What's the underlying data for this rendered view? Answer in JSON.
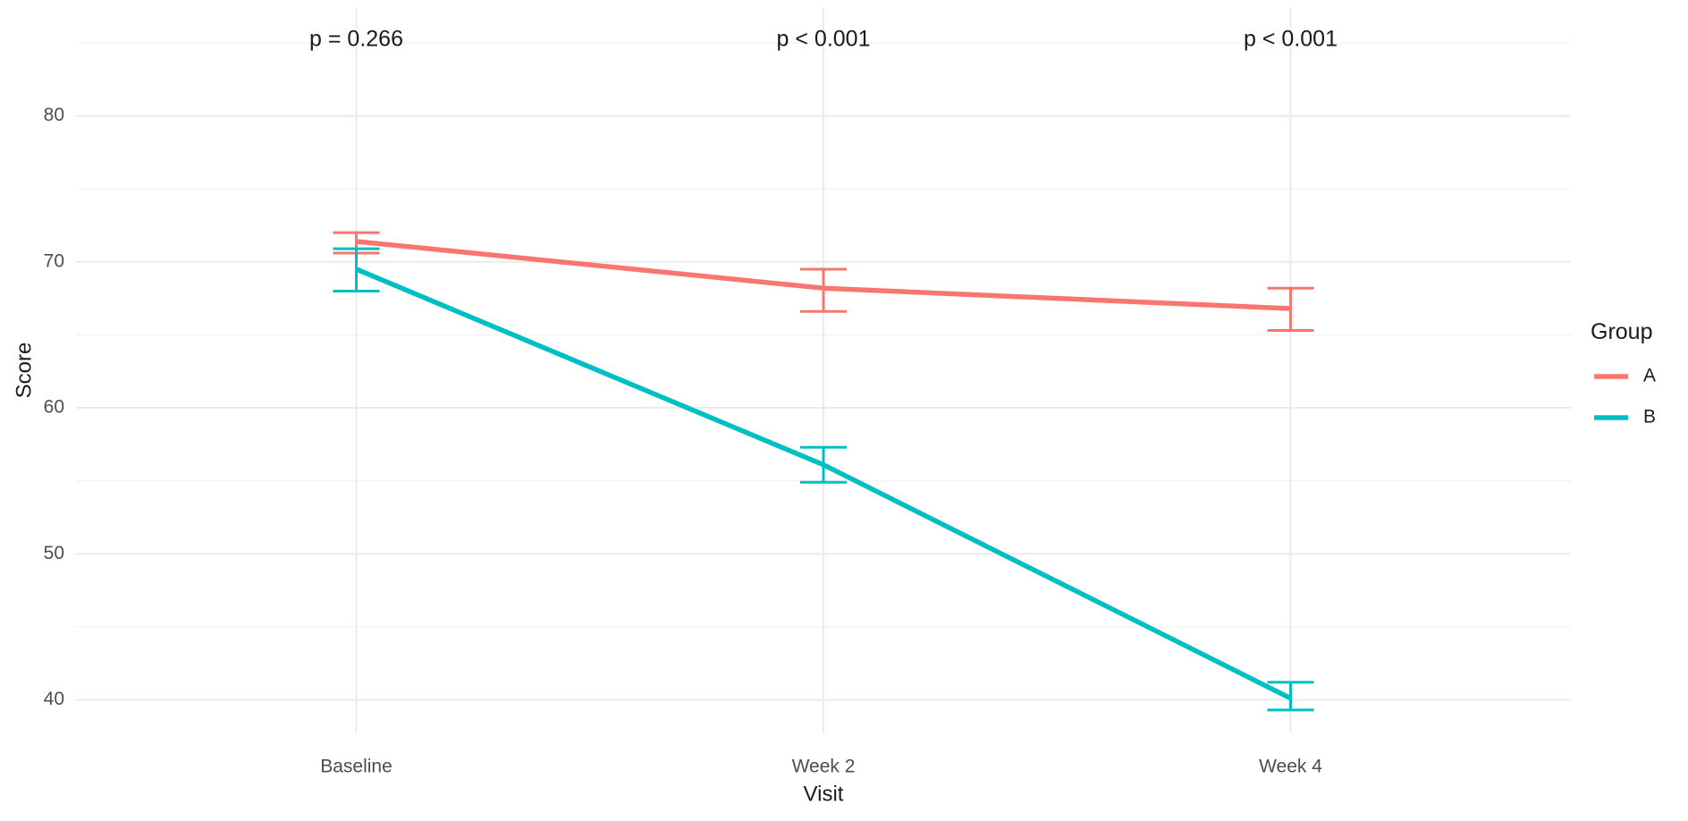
{
  "chart_data": {
    "type": "line",
    "title": "",
    "xlabel": "Visit",
    "ylabel": "Score",
    "categories": [
      "Baseline",
      "Week 2",
      "Week 4"
    ],
    "series": [
      {
        "name": "A",
        "color": "#F8766D",
        "values": [
          71.4,
          68.2,
          66.8
        ],
        "ci_low": [
          70.6,
          66.6,
          65.3
        ],
        "ci_high": [
          72.0,
          69.5,
          68.2
        ]
      },
      {
        "name": "B",
        "color": "#00BFC4",
        "values": [
          69.5,
          56.1,
          40.1
        ],
        "ci_low": [
          68.0,
          54.9,
          39.3
        ],
        "ci_high": [
          70.9,
          57.3,
          41.2
        ]
      }
    ],
    "annotations": [
      {
        "category": "Baseline",
        "label": "p = 0.266",
        "y": 85.2
      },
      {
        "category": "Week 2",
        "label": "p < 0.001",
        "y": 85.2
      },
      {
        "category": "Week 4",
        "label": "p < 0.001",
        "y": 85.2
      }
    ],
    "y_major_ticks": [
      40,
      50,
      60,
      70,
      80
    ],
    "y_minor_ticks": [
      45,
      55,
      65,
      75,
      85
    ],
    "ylim": [
      37.7,
      87.45
    ],
    "grid": true,
    "legend_title": "Group",
    "legend_position": "right"
  },
  "styles": {
    "background": "#ffffff",
    "grid_major_color": "#EBEBEB",
    "grid_minor_color": "#F2F2F2",
    "tick_label_color": "#4D4D4D",
    "title_color": "#1a1a1a",
    "annotation_color": "#1a1a1a"
  }
}
